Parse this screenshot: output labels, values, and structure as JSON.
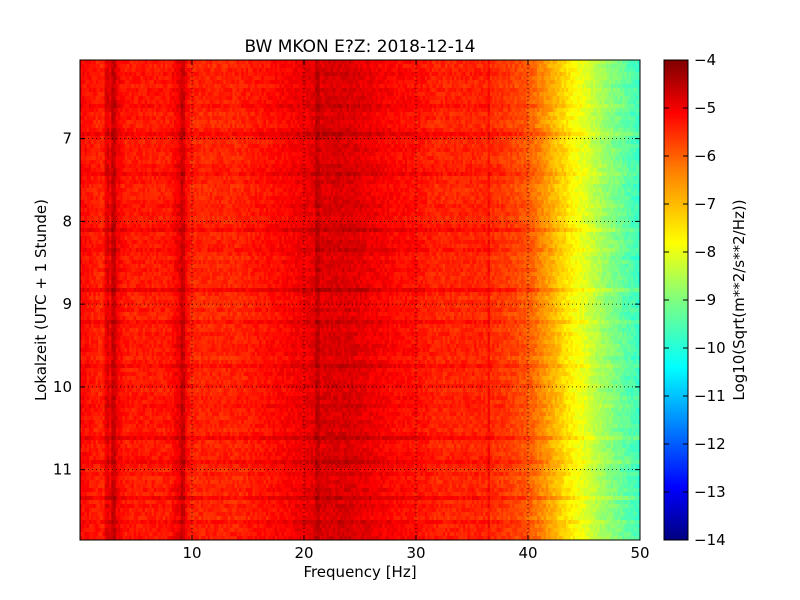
{
  "chart_data": {
    "type": "heatmap",
    "title": "BW MKON E?Z: 2018-12-14",
    "xlabel": "Frequency [Hz]",
    "ylabel": "Lokalzeit (UTC + 1 Stunde)",
    "xlim": [
      0,
      50
    ],
    "ylim": [
      11.85,
      6.05
    ],
    "y_axis_inverted": true,
    "x_ticks": [
      10,
      20,
      30,
      40,
      50
    ],
    "y_ticks": [
      7,
      8,
      9,
      10,
      11
    ],
    "grid": true,
    "colormap": "jet",
    "colorbar": {
      "label": "Log10(Sqrt(m**2/s**2/Hz))",
      "range": [
        -14,
        -4
      ],
      "ticks": [
        -14,
        -13,
        -12,
        -11,
        -10,
        -9,
        -8,
        -7,
        -6,
        -5,
        -4
      ]
    },
    "spectrum_profile": {
      "frequency_hz": [
        0,
        2,
        3,
        4,
        8,
        9,
        10,
        14,
        18,
        20,
        22,
        24,
        26,
        28,
        30,
        32,
        36,
        38,
        40,
        41,
        42,
        43,
        44,
        45,
        46,
        47,
        48,
        49,
        50
      ],
      "level": [
        -5.3,
        -5.6,
        -5.0,
        -5.5,
        -5.5,
        -5.0,
        -5.6,
        -5.6,
        -5.3,
        -5.1,
        -4.9,
        -4.9,
        -5.1,
        -5.3,
        -5.4,
        -5.6,
        -5.6,
        -5.8,
        -6.1,
        -6.5,
        -6.9,
        -7.3,
        -7.7,
        -8.0,
        -8.4,
        -8.8,
        -9.1,
        -9.4,
        -9.7
      ]
    },
    "vertical_lines_hz": [
      2.4,
      2.9,
      3.1,
      9.1,
      9.3,
      21.2,
      36.5
    ],
    "horizontal_bands_h": [
      6.6,
      6.9,
      7.4,
      8.1,
      8.3,
      8.8,
      9.2,
      9.7,
      10.2,
      10.6,
      10.9,
      11.3,
      11.6
    ]
  },
  "colors": {
    "jet_stops": [
      "#00007f",
      "#0000ff",
      "#007fff",
      "#00ffff",
      "#7fff7f",
      "#ffff00",
      "#ff7f00",
      "#ff0000",
      "#7f0000"
    ],
    "grid": "#000000"
  }
}
